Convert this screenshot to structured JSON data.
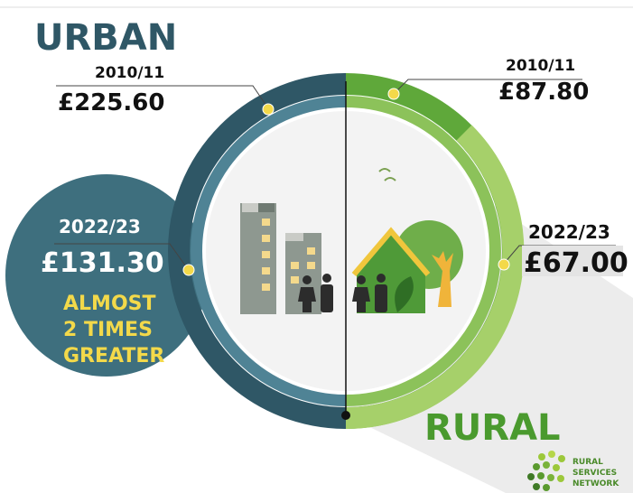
{
  "urban": {
    "title": "URBAN",
    "early": {
      "period": "2010/11",
      "amount": "£225.60"
    },
    "recent": {
      "period": "2022/23",
      "amount": "£131.30"
    },
    "note": [
      "ALMOST",
      "2 TIMES",
      "GREATER"
    ]
  },
  "rural": {
    "title": "RURAL",
    "early": {
      "period": "2010/11",
      "amount": "£87.80"
    },
    "recent": {
      "period": "2022/23",
      "amount": "£67.00"
    }
  },
  "logo": [
    "RURAL",
    "SERVICES",
    "NETWORK"
  ]
}
